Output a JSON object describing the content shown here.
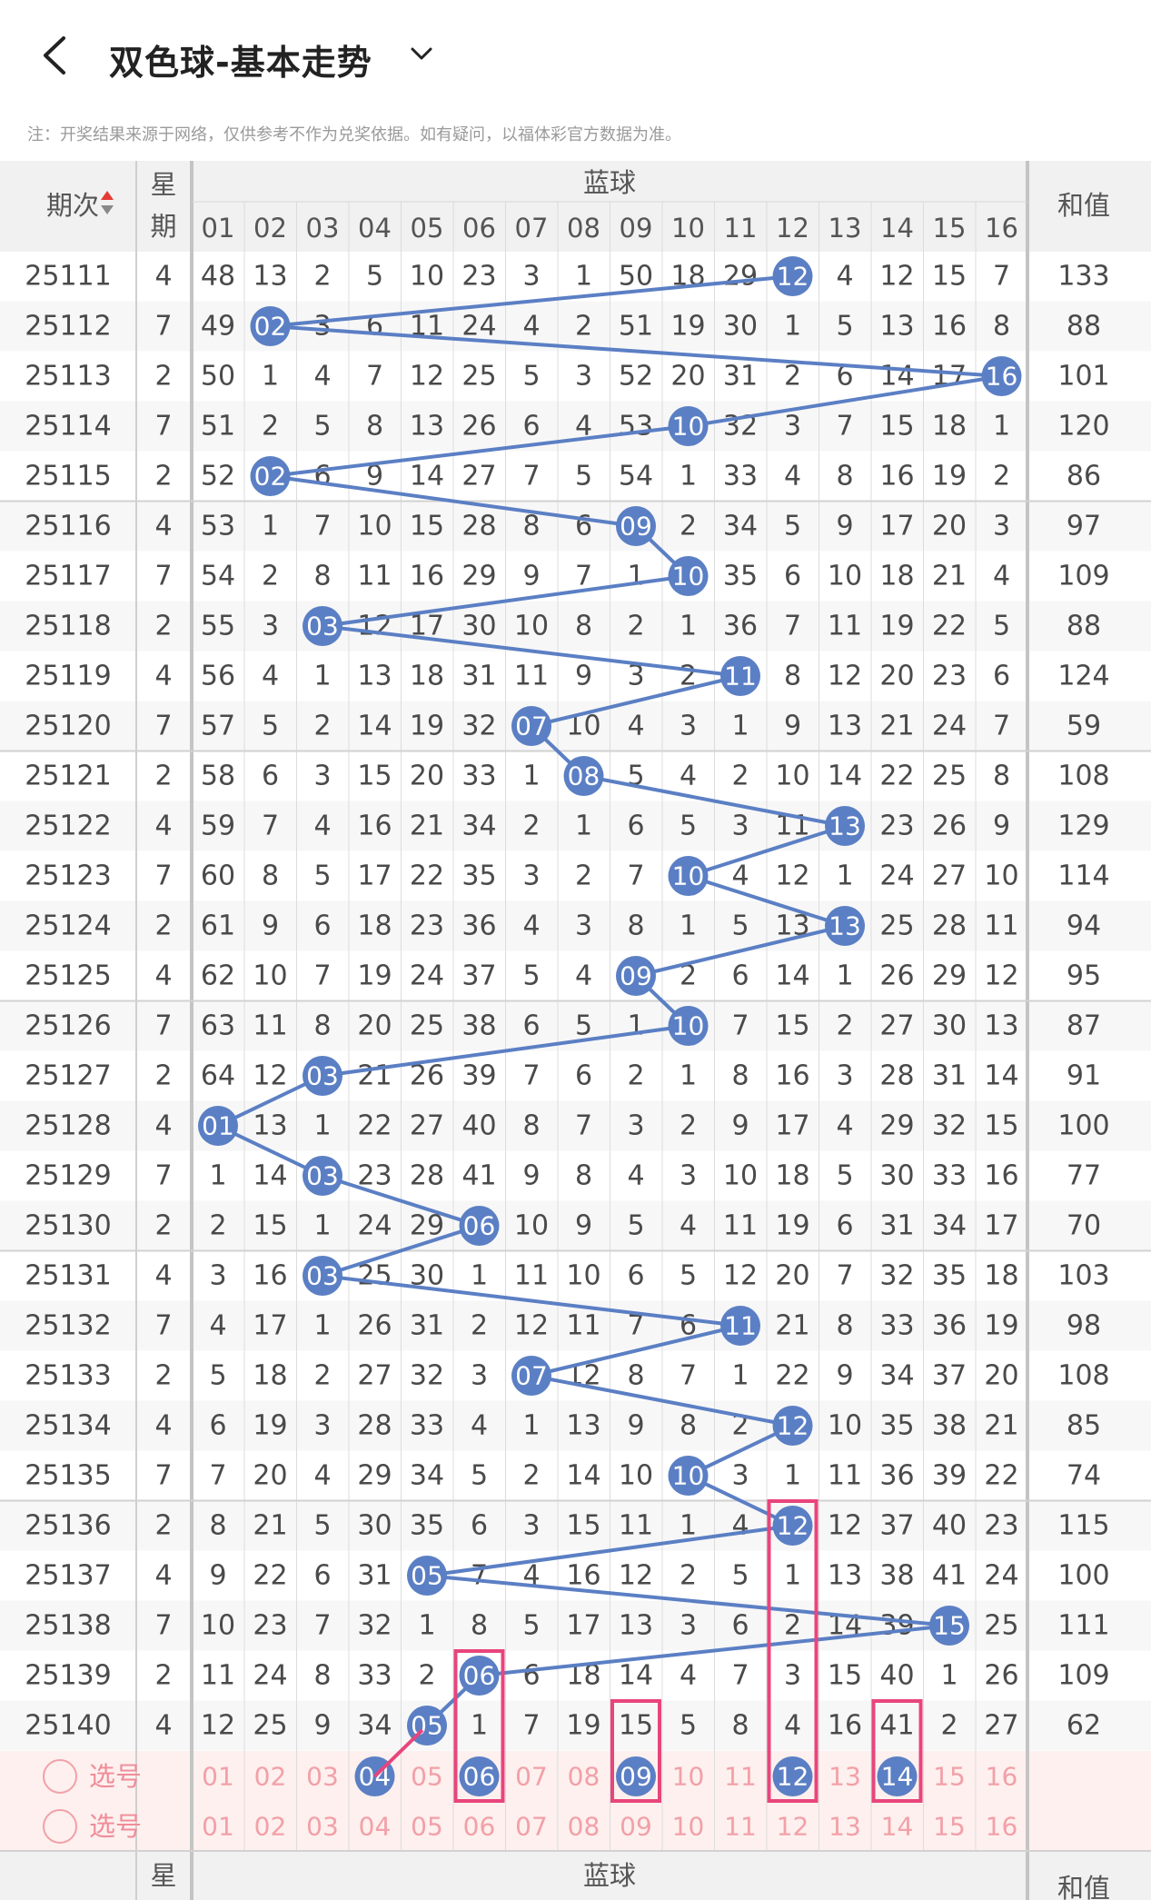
{
  "header": {
    "back_icon": "chevron-left-icon",
    "title": "双色球-基本走势",
    "dropdown_icon": "chevron-down-icon"
  },
  "notice": "注：开奖结果来源于网络，仅供参考不作为兑奖依据。如有疑问，以福体彩官方数据为准。",
  "table": {
    "col_period": "期次",
    "sort_icon": "sort-arrows-icon",
    "col_weekday_top": "星",
    "col_weekday_bottom": "期",
    "col_group": "蓝球",
    "col_sum": "和值",
    "blue_numbers": [
      "01",
      "02",
      "03",
      "04",
      "05",
      "06",
      "07",
      "08",
      "09",
      "10",
      "11",
      "12",
      "13",
      "14",
      "15",
      "16"
    ],
    "rows": [
      {
        "period": "25111",
        "weekday": "4",
        "cells": [
          "48",
          "13",
          "2",
          "5",
          "10",
          "23",
          "3",
          "1",
          "50",
          "18",
          "29",
          "12",
          "4",
          "12",
          "15",
          "7"
        ],
        "hit": 12,
        "sum": "133"
      },
      {
        "period": "25112",
        "weekday": "7",
        "cells": [
          "49",
          "02",
          "3",
          "6",
          "11",
          "24",
          "4",
          "2",
          "51",
          "19",
          "30",
          "1",
          "5",
          "13",
          "16",
          "8"
        ],
        "hit": 2,
        "sum": "88"
      },
      {
        "period": "25113",
        "weekday": "2",
        "cells": [
          "50",
          "1",
          "4",
          "7",
          "12",
          "25",
          "5",
          "3",
          "52",
          "20",
          "31",
          "2",
          "6",
          "14",
          "17",
          "16"
        ],
        "hit": 16,
        "sum": "101"
      },
      {
        "period": "25114",
        "weekday": "7",
        "cells": [
          "51",
          "2",
          "5",
          "8",
          "13",
          "26",
          "6",
          "4",
          "53",
          "10",
          "32",
          "3",
          "7",
          "15",
          "18",
          "1"
        ],
        "hit": 10,
        "sum": "120"
      },
      {
        "period": "25115",
        "weekday": "2",
        "cells": [
          "52",
          "02",
          "6",
          "9",
          "14",
          "27",
          "7",
          "5",
          "54",
          "1",
          "33",
          "4",
          "8",
          "16",
          "19",
          "2"
        ],
        "hit": 2,
        "sum": "86"
      },
      {
        "period": "25116",
        "weekday": "4",
        "cells": [
          "53",
          "1",
          "7",
          "10",
          "15",
          "28",
          "8",
          "6",
          "09",
          "2",
          "34",
          "5",
          "9",
          "17",
          "20",
          "3"
        ],
        "hit": 9,
        "sum": "97"
      },
      {
        "period": "25117",
        "weekday": "7",
        "cells": [
          "54",
          "2",
          "8",
          "11",
          "16",
          "29",
          "9",
          "7",
          "1",
          "10",
          "35",
          "6",
          "10",
          "18",
          "21",
          "4"
        ],
        "hit": 10,
        "sum": "109"
      },
      {
        "period": "25118",
        "weekday": "2",
        "cells": [
          "55",
          "3",
          "03",
          "12",
          "17",
          "30",
          "10",
          "8",
          "2",
          "1",
          "36",
          "7",
          "11",
          "19",
          "22",
          "5"
        ],
        "hit": 3,
        "sum": "88"
      },
      {
        "period": "25119",
        "weekday": "4",
        "cells": [
          "56",
          "4",
          "1",
          "13",
          "18",
          "31",
          "11",
          "9",
          "3",
          "2",
          "11",
          "8",
          "12",
          "20",
          "23",
          "6"
        ],
        "hit": 11,
        "sum": "124"
      },
      {
        "period": "25120",
        "weekday": "7",
        "cells": [
          "57",
          "5",
          "2",
          "14",
          "19",
          "32",
          "07",
          "10",
          "4",
          "3",
          "1",
          "9",
          "13",
          "21",
          "24",
          "7"
        ],
        "hit": 7,
        "sum": "59"
      },
      {
        "period": "25121",
        "weekday": "2",
        "cells": [
          "58",
          "6",
          "3",
          "15",
          "20",
          "33",
          "1",
          "08",
          "5",
          "4",
          "2",
          "10",
          "14",
          "22",
          "25",
          "8"
        ],
        "hit": 8,
        "sum": "108"
      },
      {
        "period": "25122",
        "weekday": "4",
        "cells": [
          "59",
          "7",
          "4",
          "16",
          "21",
          "34",
          "2",
          "1",
          "6",
          "5",
          "3",
          "11",
          "13",
          "23",
          "26",
          "9"
        ],
        "hit": 13,
        "sum": "129"
      },
      {
        "period": "25123",
        "weekday": "7",
        "cells": [
          "60",
          "8",
          "5",
          "17",
          "22",
          "35",
          "3",
          "2",
          "7",
          "10",
          "4",
          "12",
          "1",
          "24",
          "27",
          "10"
        ],
        "hit": 10,
        "sum": "114"
      },
      {
        "period": "25124",
        "weekday": "2",
        "cells": [
          "61",
          "9",
          "6",
          "18",
          "23",
          "36",
          "4",
          "3",
          "8",
          "1",
          "5",
          "13",
          "13",
          "25",
          "28",
          "11"
        ],
        "hit": 13,
        "sum": "94"
      },
      {
        "period": "25125",
        "weekday": "4",
        "cells": [
          "62",
          "10",
          "7",
          "19",
          "24",
          "37",
          "5",
          "4",
          "09",
          "2",
          "6",
          "14",
          "1",
          "26",
          "29",
          "12"
        ],
        "hit": 9,
        "sum": "95"
      },
      {
        "period": "25126",
        "weekday": "7",
        "cells": [
          "63",
          "11",
          "8",
          "20",
          "25",
          "38",
          "6",
          "5",
          "1",
          "10",
          "7",
          "15",
          "2",
          "27",
          "30",
          "13"
        ],
        "hit": 10,
        "sum": "87"
      },
      {
        "period": "25127",
        "weekday": "2",
        "cells": [
          "64",
          "12",
          "03",
          "21",
          "26",
          "39",
          "7",
          "6",
          "2",
          "1",
          "8",
          "16",
          "3",
          "28",
          "31",
          "14"
        ],
        "hit": 3,
        "sum": "91"
      },
      {
        "period": "25128",
        "weekday": "4",
        "cells": [
          "01",
          "13",
          "1",
          "22",
          "27",
          "40",
          "8",
          "7",
          "3",
          "2",
          "9",
          "17",
          "4",
          "29",
          "32",
          "15"
        ],
        "hit": 1,
        "sum": "100"
      },
      {
        "period": "25129",
        "weekday": "7",
        "cells": [
          "1",
          "14",
          "03",
          "23",
          "28",
          "41",
          "9",
          "8",
          "4",
          "3",
          "10",
          "18",
          "5",
          "30",
          "33",
          "16"
        ],
        "hit": 3,
        "sum": "77"
      },
      {
        "period": "25130",
        "weekday": "2",
        "cells": [
          "2",
          "15",
          "1",
          "24",
          "29",
          "06",
          "10",
          "9",
          "5",
          "4",
          "11",
          "19",
          "6",
          "31",
          "34",
          "17"
        ],
        "hit": 6,
        "sum": "70"
      },
      {
        "period": "25131",
        "weekday": "4",
        "cells": [
          "3",
          "16",
          "03",
          "25",
          "30",
          "1",
          "11",
          "10",
          "6",
          "5",
          "12",
          "20",
          "7",
          "32",
          "35",
          "18"
        ],
        "hit": 3,
        "sum": "103"
      },
      {
        "period": "25132",
        "weekday": "7",
        "cells": [
          "4",
          "17",
          "1",
          "26",
          "31",
          "2",
          "12",
          "11",
          "7",
          "6",
          "11",
          "21",
          "8",
          "33",
          "36",
          "19"
        ],
        "hit": 11,
        "sum": "98"
      },
      {
        "period": "25133",
        "weekday": "2",
        "cells": [
          "5",
          "18",
          "2",
          "27",
          "32",
          "3",
          "07",
          "12",
          "8",
          "7",
          "1",
          "22",
          "9",
          "34",
          "37",
          "20"
        ],
        "hit": 7,
        "sum": "108"
      },
      {
        "period": "25134",
        "weekday": "4",
        "cells": [
          "6",
          "19",
          "3",
          "28",
          "33",
          "4",
          "1",
          "13",
          "9",
          "8",
          "2",
          "12",
          "10",
          "35",
          "38",
          "21"
        ],
        "hit": 12,
        "sum": "85"
      },
      {
        "period": "25135",
        "weekday": "7",
        "cells": [
          "7",
          "20",
          "4",
          "29",
          "34",
          "5",
          "2",
          "14",
          "10",
          "10",
          "3",
          "1",
          "11",
          "36",
          "39",
          "22"
        ],
        "hit": 10,
        "sum": "74"
      },
      {
        "period": "25136",
        "weekday": "2",
        "cells": [
          "8",
          "21",
          "5",
          "30",
          "35",
          "6",
          "3",
          "15",
          "11",
          "1",
          "4",
          "12",
          "12",
          "37",
          "40",
          "23"
        ],
        "hit": 12,
        "sum": "115"
      },
      {
        "period": "25137",
        "weekday": "4",
        "cells": [
          "9",
          "22",
          "6",
          "31",
          "05",
          "7",
          "4",
          "16",
          "12",
          "2",
          "5",
          "1",
          "13",
          "38",
          "41",
          "24"
        ],
        "hit": 5,
        "sum": "100"
      },
      {
        "period": "25138",
        "weekday": "7",
        "cells": [
          "10",
          "23",
          "7",
          "32",
          "1",
          "8",
          "5",
          "17",
          "13",
          "3",
          "6",
          "2",
          "14",
          "39",
          "15",
          "25"
        ],
        "hit": 15,
        "sum": "111"
      },
      {
        "period": "25139",
        "weekday": "2",
        "cells": [
          "11",
          "24",
          "8",
          "33",
          "2",
          "06",
          "6",
          "18",
          "14",
          "4",
          "7",
          "3",
          "15",
          "40",
          "1",
          "26"
        ],
        "hit": 6,
        "sum": "109"
      },
      {
        "period": "25140",
        "weekday": "4",
        "cells": [
          "12",
          "25",
          "9",
          "34",
          "05",
          "1",
          "7",
          "19",
          "15",
          "5",
          "8",
          "4",
          "16",
          "41",
          "2",
          "27"
        ],
        "hit": 5,
        "sum": "62"
      }
    ],
    "select_rows": [
      {
        "label": "选号",
        "picked": [
          4,
          6,
          9,
          12,
          14
        ]
      },
      {
        "label": "选号",
        "picked": []
      }
    ],
    "footer": {
      "col_weekday_top": "星",
      "col_group": "蓝球",
      "col_sum": "和值"
    }
  },
  "colors": {
    "ball": "#5b7fc4",
    "line": "#5b7fc4",
    "pink_box": "#e8457c",
    "select_text": "#f2a0a8",
    "select_bg": "#fdf0ee",
    "header_bg": "#f1f1f1"
  }
}
